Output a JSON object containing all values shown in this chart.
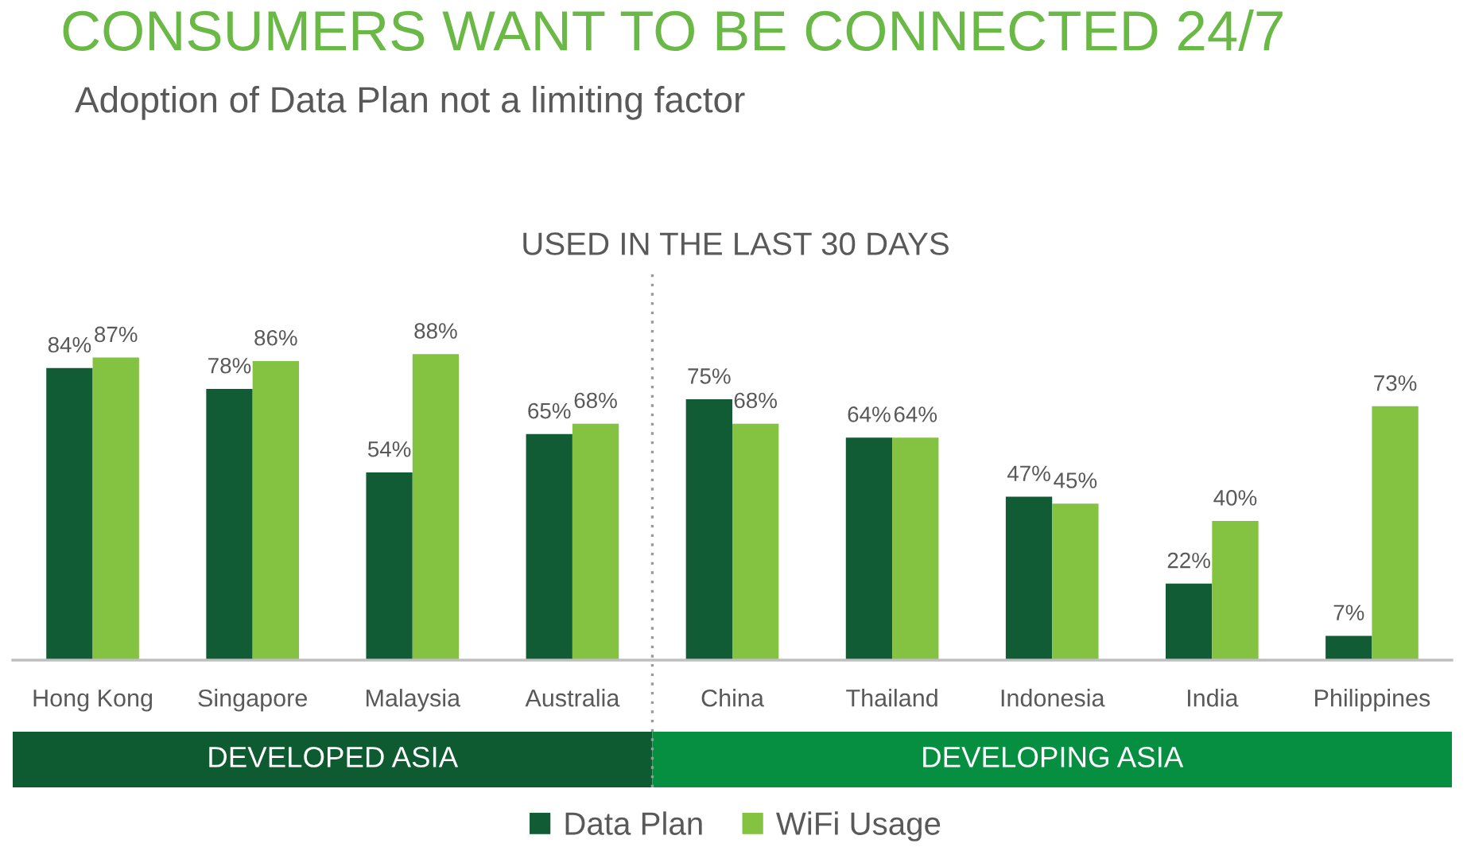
{
  "chart_data": {
    "type": "bar",
    "title": "CONSUMERS WANT TO BE CONNECTED 24/7",
    "subtitle": "Adoption of Data Plan not a limiting factor",
    "annotations": [
      "USED IN THE LAST 30 DAYS",
      "DEVELOPED ASIA",
      "DEVELOPING ASIA"
    ],
    "categories": [
      "Hong Kong",
      "Singapore",
      "Malaysia",
      "Australia",
      "China",
      "Thailand",
      "Indonesia",
      "India",
      "Philippines"
    ],
    "series": [
      {
        "name": "Data Plan",
        "color": "#115c34",
        "values": [
          84,
          78,
          54,
          65,
          75,
          64,
          47,
          22,
          7
        ],
        "value_labels": [
          "84%",
          "78%",
          "54%",
          "65%",
          "75%",
          "64%",
          "47%",
          "22%",
          "7%"
        ]
      },
      {
        "name": "WiFi Usage",
        "color": "#84c241",
        "values": [
          87,
          86,
          88,
          68,
          68,
          64,
          45,
          40,
          73
        ],
        "value_labels": [
          "87%",
          "86%",
          "88%",
          "68%",
          "68%",
          "64%",
          "45%",
          "40%",
          "73%"
        ]
      }
    ],
    "tick_labels": "x",
    "grid": false,
    "legend": "bottom"
  }
}
